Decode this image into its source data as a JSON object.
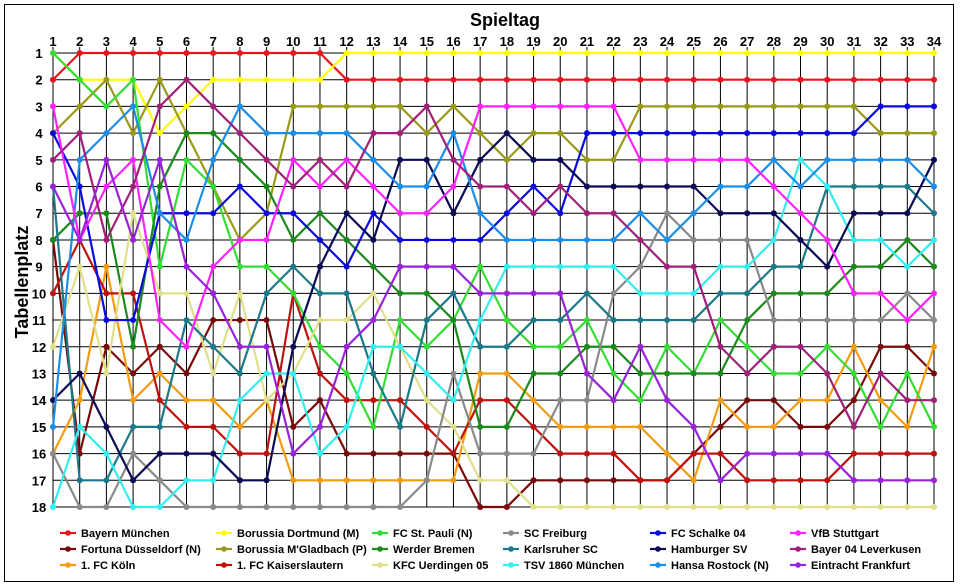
{
  "chart_data": {
    "type": "line",
    "xlabel": "Spieltag",
    "ylabel": "Tabellenplatz",
    "x": [
      1,
      2,
      3,
      4,
      5,
      6,
      7,
      8,
      9,
      10,
      11,
      12,
      13,
      14,
      15,
      16,
      17,
      18,
      19,
      20,
      21,
      22,
      23,
      24,
      25,
      26,
      27,
      28,
      29,
      30,
      31,
      32,
      33,
      34
    ],
    "xlim": [
      1,
      34
    ],
    "ylim": [
      1,
      18
    ],
    "y_inverted": true,
    "grid": true,
    "legend_position": "bottom",
    "series": [
      {
        "name": "Bayern München",
        "color": "#e8151b",
        "values": [
          2,
          1,
          1,
          1,
          1,
          1,
          1,
          1,
          1,
          1,
          1,
          2,
          2,
          2,
          2,
          2,
          2,
          2,
          2,
          2,
          2,
          2,
          2,
          2,
          2,
          2,
          2,
          2,
          2,
          2,
          2,
          2,
          2,
          2
        ]
      },
      {
        "name": "Fortuna Düsseldorf (N)",
        "color": "#7a0a0a",
        "values": [
          8,
          16,
          12,
          13,
          12,
          13,
          11,
          11,
          11,
          15,
          14,
          16,
          16,
          16,
          16,
          16,
          18,
          18,
          17,
          17,
          17,
          17,
          17,
          17,
          16,
          15,
          14,
          14,
          15,
          15,
          14,
          12,
          12,
          13
        ]
      },
      {
        "name": "1. FC Köln",
        "color": "#f39c12",
        "values": [
          16,
          14,
          9,
          14,
          13,
          14,
          14,
          15,
          14,
          17,
          17,
          17,
          17,
          17,
          17,
          17,
          13,
          13,
          14,
          15,
          15,
          15,
          15,
          16,
          17,
          14,
          15,
          15,
          14,
          14,
          12,
          14,
          15,
          12
        ]
      },
      {
        "name": "Borussia Dortmund (M)",
        "color": "#ffff00",
        "values": [
          1,
          2,
          2,
          2,
          4,
          3,
          2,
          2,
          2,
          2,
          2,
          1,
          1,
          1,
          1,
          1,
          1,
          1,
          1,
          1,
          1,
          1,
          1,
          1,
          1,
          1,
          1,
          1,
          1,
          1,
          1,
          1,
          1,
          1
        ]
      },
      {
        "name": "Borussia M'Gladbach (P)",
        "color": "#9a9a1a",
        "values": [
          4,
          3,
          2,
          4,
          2,
          4,
          6,
          8,
          7,
          3,
          3,
          3,
          3,
          3,
          4,
          3,
          4,
          5,
          4,
          4,
          5,
          5,
          3,
          3,
          3,
          3,
          3,
          3,
          3,
          3,
          3,
          4,
          4,
          4
        ]
      },
      {
        "name": "1. FC Kaiserslautern",
        "color": "#c0120c",
        "values": [
          10,
          8,
          10,
          10,
          14,
          15,
          15,
          16,
          16,
          10,
          13,
          14,
          14,
          14,
          15,
          16,
          14,
          14,
          15,
          16,
          16,
          16,
          17,
          17,
          16,
          16,
          17,
          17,
          17,
          17,
          16,
          16,
          16,
          16
        ]
      },
      {
        "name": "FC St. Pauli (N)",
        "color": "#33dd33",
        "values": [
          1,
          2,
          3,
          2,
          9,
          5,
          6,
          9,
          9,
          10,
          12,
          13,
          15,
          11,
          12,
          11,
          9,
          11,
          12,
          12,
          11,
          13,
          14,
          12,
          13,
          11,
          12,
          13,
          13,
          12,
          13,
          15,
          13,
          15
        ]
      },
      {
        "name": "Werder Bremen",
        "color": "#1a8a1a",
        "values": [
          8,
          7,
          7,
          12,
          6,
          4,
          4,
          5,
          6,
          8,
          7,
          8,
          9,
          10,
          10,
          11,
          15,
          15,
          13,
          13,
          12,
          12,
          13,
          13,
          13,
          13,
          11,
          10,
          10,
          10,
          9,
          9,
          8,
          9
        ]
      },
      {
        "name": "KFC Uerdingen 05",
        "color": "#e0e08a",
        "values": [
          12,
          9,
          13,
          7,
          10,
          10,
          13,
          10,
          14,
          13,
          11,
          11,
          10,
          12,
          14,
          15,
          17,
          17,
          18,
          18,
          18,
          18,
          18,
          18,
          18,
          18,
          18,
          18,
          18,
          18,
          18,
          18,
          18,
          18
        ]
      },
      {
        "name": "SC Freiburg",
        "color": "#8a8a8a",
        "values": [
          16,
          18,
          18,
          16,
          17,
          18,
          18,
          18,
          18,
          18,
          18,
          18,
          18,
          18,
          17,
          13,
          16,
          16,
          16,
          14,
          14,
          10,
          9,
          7,
          8,
          8,
          8,
          11,
          11,
          11,
          11,
          11,
          10,
          11
        ]
      },
      {
        "name": "Karlsruher SC",
        "color": "#1a7a8a",
        "values": [
          6,
          17,
          17,
          15,
          15,
          11,
          12,
          13,
          10,
          9,
          10,
          10,
          13,
          15,
          11,
          10,
          12,
          12,
          11,
          11,
          10,
          11,
          11,
          11,
          11,
          10,
          10,
          9,
          9,
          6,
          6,
          6,
          6,
          7
        ]
      },
      {
        "name": "TSV 1860 München",
        "color": "#33eeee",
        "values": [
          18,
          15,
          16,
          18,
          18,
          17,
          17,
          14,
          13,
          13,
          16,
          15,
          12,
          12,
          13,
          14,
          11,
          9,
          9,
          9,
          9,
          9,
          10,
          10,
          10,
          9,
          9,
          8,
          5,
          6,
          8,
          8,
          9,
          8
        ]
      },
      {
        "name": "FC Schalke 04",
        "color": "#0a0add",
        "values": [
          4,
          6,
          11,
          11,
          7,
          7,
          7,
          6,
          7,
          7,
          8,
          9,
          7,
          8,
          8,
          8,
          8,
          7,
          6,
          7,
          4,
          4,
          4,
          4,
          4,
          4,
          4,
          4,
          4,
          4,
          4,
          3,
          3,
          3
        ]
      },
      {
        "name": "Hamburger SV",
        "color": "#0a0a55",
        "values": [
          14,
          13,
          15,
          17,
          16,
          16,
          16,
          17,
          17,
          12,
          9,
          7,
          8,
          5,
          5,
          7,
          5,
          4,
          5,
          5,
          6,
          6,
          6,
          6,
          6,
          7,
          7,
          7,
          8,
          9,
          7,
          7,
          7,
          5
        ]
      },
      {
        "name": "Hansa Rostock (N)",
        "color": "#1a8ee8",
        "values": [
          15,
          5,
          4,
          3,
          7,
          8,
          5,
          3,
          4,
          4,
          4,
          4,
          5,
          6,
          6,
          4,
          7,
          8,
          8,
          8,
          8,
          8,
          7,
          8,
          7,
          6,
          6,
          5,
          6,
          5,
          5,
          5,
          5,
          6
        ]
      },
      {
        "name": "VfB Stuttgart",
        "color": "#ff22ff",
        "values": [
          3,
          8,
          6,
          5,
          11,
          12,
          9,
          8,
          8,
          5,
          6,
          5,
          6,
          7,
          7,
          6,
          3,
          3,
          3,
          3,
          3,
          3,
          5,
          5,
          5,
          5,
          5,
          6,
          7,
          8,
          10,
          10,
          11,
          10
        ]
      },
      {
        "name": "Bayer 04 Leverkusen",
        "color": "#a0207a",
        "values": [
          5,
          4,
          8,
          6,
          3,
          2,
          3,
          4,
          5,
          6,
          5,
          6,
          4,
          4,
          3,
          5,
          6,
          6,
          7,
          6,
          7,
          7,
          8,
          9,
          9,
          12,
          13,
          12,
          12,
          13,
          15,
          13,
          14,
          14
        ]
      },
      {
        "name": "Eintracht Frankfurt",
        "color": "#9a22dd",
        "values": [
          6,
          8,
          5,
          8,
          5,
          9,
          10,
          12,
          12,
          16,
          15,
          12,
          11,
          9,
          9,
          9,
          10,
          10,
          10,
          10,
          13,
          14,
          12,
          14,
          15,
          17,
          16,
          16,
          16,
          16,
          17,
          17,
          17,
          17
        ]
      }
    ]
  }
}
